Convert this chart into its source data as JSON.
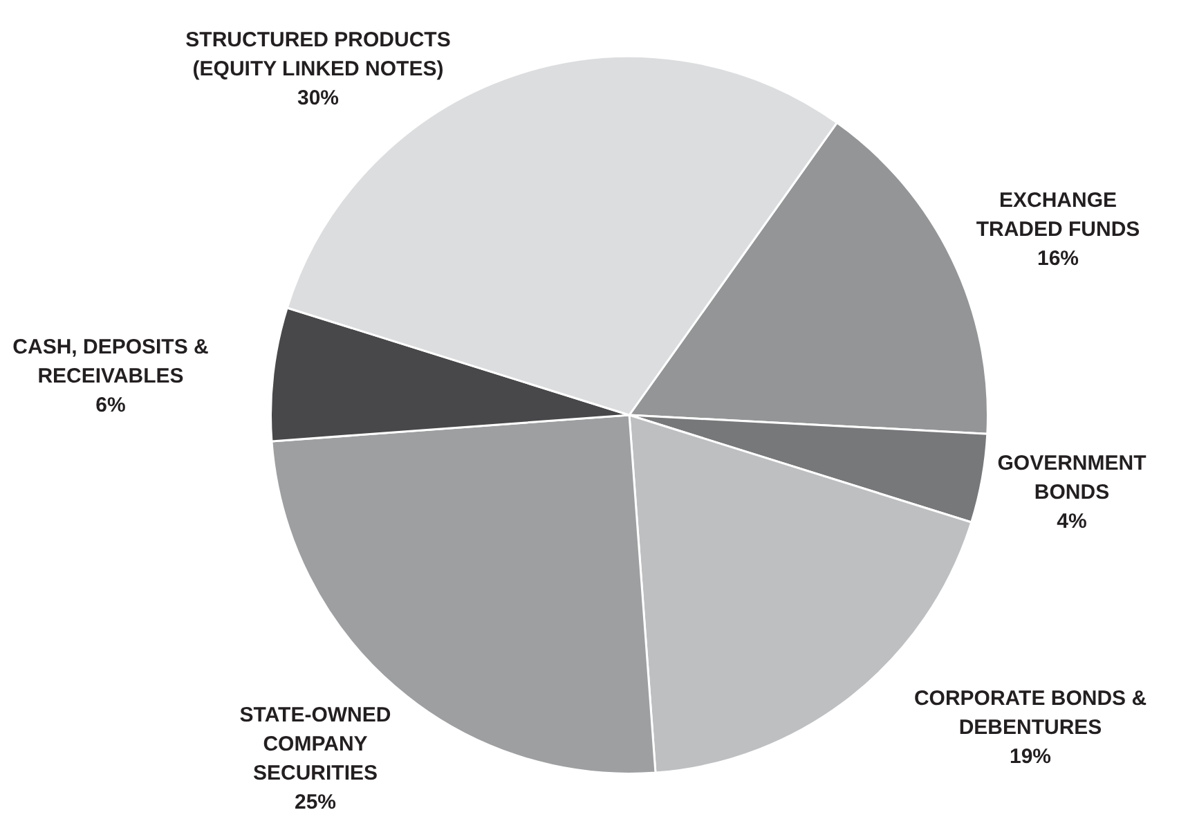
{
  "chart_data": {
    "type": "pie",
    "categories": [
      "EXCHANGE TRADED FUNDS",
      "GOVERNMENT BONDS",
      "CORPORATE BONDS & DEBENTURES",
      "STATE-OWNED COMPANY SECURITIES",
      "CASH, DEPOSITS & RECEIVABLES",
      "STRUCTURED PRODUCTS (EQUITY LINKED NOTES)"
    ],
    "values": [
      16,
      4,
      19,
      25,
      6,
      30
    ],
    "value_labels": [
      "16%",
      "4%",
      "19%",
      "25%",
      "6%",
      "30%"
    ],
    "colors": [
      "#949596",
      "#77787a",
      "#bebfc1",
      "#9d9fa1",
      "#48484a",
      "#dcdddf"
    ],
    "legend": false
  }
}
